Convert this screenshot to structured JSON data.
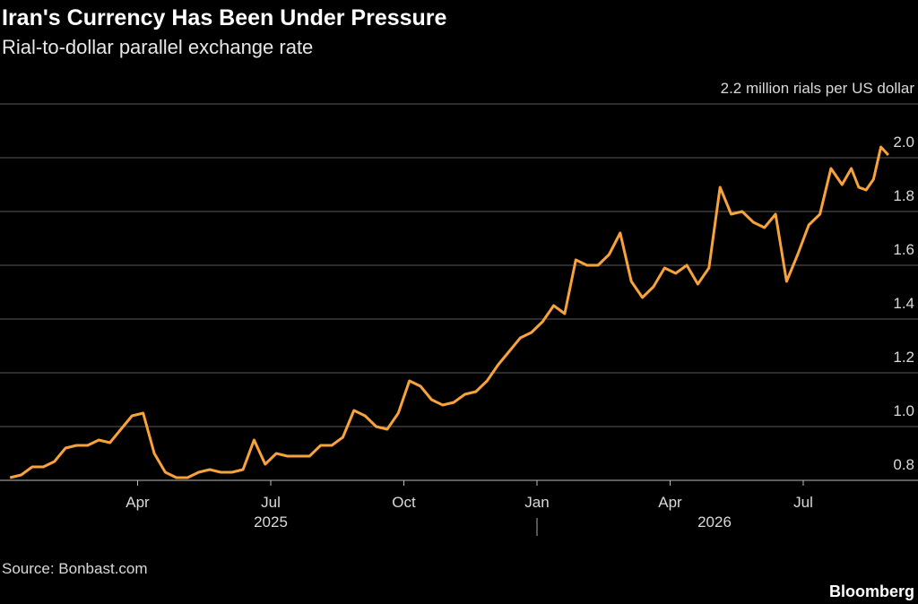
{
  "chart_data": {
    "type": "line",
    "title": "Iran's Currency Has Been Under Pressure",
    "subtitle": "Rial-to-dollar parallel exchange rate",
    "source": "Source: Bonbast.com",
    "brand": "Bloomberg",
    "color": "#f7a23b",
    "grid": true,
    "x": [
      "2025-01",
      "2025-01",
      "2025-01",
      "2025-01",
      "2025-02",
      "2025-02",
      "2025-02",
      "2025-02",
      "2025-03",
      "2025-03",
      "2025-03",
      "2025-03",
      "2025-04",
      "2025-04",
      "2025-04",
      "2025-04",
      "2025-05",
      "2025-05",
      "2025-05",
      "2025-05",
      "2025-06",
      "2025-06",
      "2025-06",
      "2025-06",
      "2025-07",
      "2025-07",
      "2025-07",
      "2025-07",
      "2025-08",
      "2025-08",
      "2025-08",
      "2025-08",
      "2025-09",
      "2025-09",
      "2025-09",
      "2025-09",
      "2025-10",
      "2025-10",
      "2025-10",
      "2025-10",
      "2025-11",
      "2025-11",
      "2025-11",
      "2025-11",
      "2025-12",
      "2025-12",
      "2025-12",
      "2025-12",
      "2026-01",
      "2026-01",
      "2026-01",
      "2026-01",
      "2026-02",
      "2026-02",
      "2026-02",
      "2026-02",
      "2026-03",
      "2026-03",
      "2026-03",
      "2026-03",
      "2026-04",
      "2026-04",
      "2026-04",
      "2026-04",
      "2026-05",
      "2026-05",
      "2026-05",
      "2026-05",
      "2026-06",
      "2026-06",
      "2026-06",
      "2026-06",
      "2026-07",
      "2026-07",
      "2026-07",
      "2026-07",
      "2026-08",
      "2026-08",
      "2026-08",
      "2026-08",
      "2026-08",
      "2026-08"
    ],
    "values": [
      0.81,
      0.82,
      0.85,
      0.85,
      0.87,
      0.92,
      0.93,
      0.93,
      0.95,
      0.94,
      0.99,
      1.04,
      1.05,
      0.9,
      0.83,
      0.81,
      0.81,
      0.83,
      0.84,
      0.83,
      0.83,
      0.84,
      0.95,
      0.86,
      0.9,
      0.89,
      0.89,
      0.89,
      0.93,
      0.93,
      0.96,
      1.06,
      1.04,
      1.0,
      0.99,
      1.05,
      1.17,
      1.15,
      1.1,
      1.08,
      1.09,
      1.12,
      1.13,
      1.17,
      1.23,
      1.28,
      1.33,
      1.35,
      1.39,
      1.45,
      1.42,
      1.62,
      1.6,
      1.6,
      1.64,
      1.72,
      1.54,
      1.48,
      1.52,
      1.59,
      1.57,
      1.6,
      1.53,
      1.59,
      1.89,
      1.79,
      1.8,
      1.76,
      1.74,
      1.79,
      1.54,
      1.64,
      1.75,
      1.79,
      1.96,
      1.9,
      1.96,
      1.89,
      1.88,
      1.92,
      2.04,
      2.01
    ],
    "xticks": [
      {
        "value": "2025-04",
        "label": "Apr"
      },
      {
        "value": "2025-07",
        "label": "Jul"
      },
      {
        "value": "2025-10",
        "label": "Oct"
      },
      {
        "value": "2026-01",
        "label": "Jan"
      },
      {
        "value": "2026-04",
        "label": "Apr"
      },
      {
        "value": "2026-07",
        "label": "Jul"
      }
    ],
    "year_labels": [
      "2025",
      "2026"
    ],
    "ylim": [
      0.8,
      2.2
    ],
    "yticks": [
      0.8,
      {
        "value": 1,
        "label": "1.0"
      },
      1.2,
      1.4,
      1.6,
      1.8,
      {
        "value": 2,
        "label": "2.0"
      },
      {
        "value": 2.2,
        "label": "2.2 million rials per US dollar"
      }
    ]
  }
}
